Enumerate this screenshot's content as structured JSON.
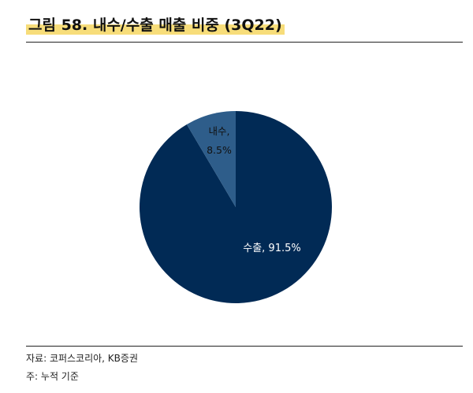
{
  "title": "그림 58. 내수/수출 매출 비중 (3Q22)",
  "source": "자료: 코퍼스코리아, KB증권",
  "footnote": "주: 누적 기준",
  "colors": {
    "export": "#012a55",
    "domestic": "#2e5d8a",
    "highlight": "#f7dd7a"
  },
  "chart_data": {
    "type": "pie",
    "slices": [
      {
        "label": "수출",
        "value": 91.5,
        "color": "#012a55",
        "label_text": "수출, 91.5%",
        "label_color": "#ffffff"
      },
      {
        "label": "내수",
        "value": 8.5,
        "color": "#2e5d8a",
        "label_text_lines": [
          "내수,",
          "8.5%"
        ],
        "label_color": "#111111"
      }
    ],
    "start": "12 o'clock",
    "direction": "clockwise"
  }
}
